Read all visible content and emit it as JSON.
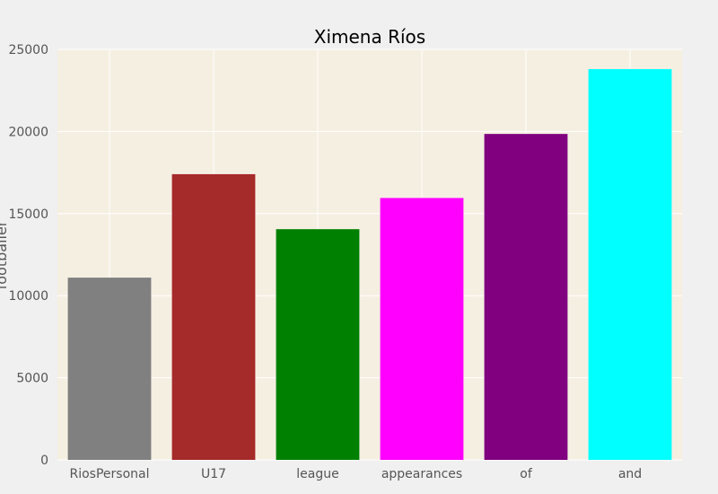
{
  "chart_data": {
    "type": "bar",
    "title": "Ximena Ríos",
    "xlabel": "",
    "ylabel": "footballer",
    "categories": [
      "RiosPersonal",
      "U17",
      "league",
      "appearances",
      "of",
      "and"
    ],
    "values": [
      11100,
      17400,
      14050,
      15950,
      19850,
      23800
    ],
    "colors": [
      "#808080",
      "#a52a2a",
      "#008000",
      "#ff00ff",
      "#800080",
      "#00ffff"
    ],
    "ylim": [
      0,
      25000
    ],
    "yticks": [
      0,
      5000,
      10000,
      15000,
      20000,
      25000
    ],
    "grid": true,
    "legend": "none",
    "plot_background": "#f5efe2",
    "grid_color": "#ffffff"
  }
}
